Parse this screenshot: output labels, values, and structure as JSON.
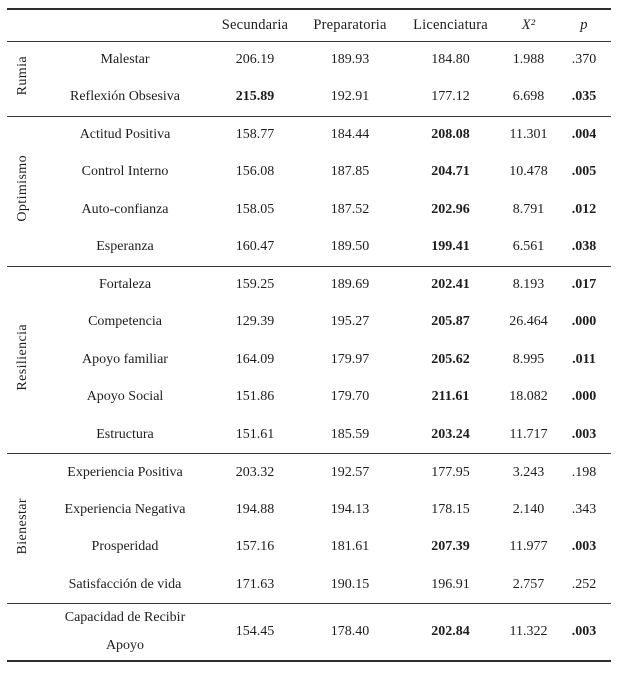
{
  "table": {
    "columns": [
      "",
      "Secundaria",
      "Preparatoria",
      "Licenciatura",
      "X²",
      "p"
    ],
    "value_column_names": [
      "mean-secundaria",
      "mean-preparatoria",
      "mean-licenciatura",
      "chi-square",
      "p-value"
    ],
    "groups": [
      {
        "label": "Rumia",
        "rows": [
          {
            "name": "Malestar",
            "values": [
              "206.19",
              "189.93",
              "184.80",
              "1.988",
              ".370"
            ],
            "bold": []
          },
          {
            "name": "Reflexión Obsesiva",
            "values": [
              "215.89",
              "192.91",
              "177.12",
              "6.698",
              ".035"
            ],
            "bold": [
              0,
              4
            ]
          }
        ]
      },
      {
        "label": "Optimismo",
        "rows": [
          {
            "name": "Actitud Positiva",
            "values": [
              "158.77",
              "184.44",
              "208.08",
              "11.301",
              ".004"
            ],
            "bold": [
              2,
              4
            ]
          },
          {
            "name": "Control Interno",
            "values": [
              "156.08",
              "187.85",
              "204.71",
              "10.478",
              ".005"
            ],
            "bold": [
              2,
              4
            ]
          },
          {
            "name": "Auto-confianza",
            "values": [
              "158.05",
              "187.52",
              "202.96",
              "8.791",
              ".012"
            ],
            "bold": [
              2,
              4
            ]
          },
          {
            "name": "Esperanza",
            "values": [
              "160.47",
              "189.50",
              "199.41",
              "6.561",
              ".038"
            ],
            "bold": [
              2,
              4
            ]
          }
        ]
      },
      {
        "label": "Resiliencia",
        "rows": [
          {
            "name": "Fortaleza",
            "values": [
              "159.25",
              "189.69",
              "202.41",
              "8.193",
              ".017"
            ],
            "bold": [
              2,
              4
            ]
          },
          {
            "name": "Competencia",
            "values": [
              "129.39",
              "195.27",
              "205.87",
              "26.464",
              ".000"
            ],
            "bold": [
              2,
              4
            ]
          },
          {
            "name": "Apoyo familiar",
            "values": [
              "164.09",
              "179.97",
              "205.62",
              "8.995",
              ".011"
            ],
            "bold": [
              2,
              4
            ]
          },
          {
            "name": "Apoyo Social",
            "values": [
              "151.86",
              "179.70",
              "211.61",
              "18.082",
              ".000"
            ],
            "bold": [
              2,
              4
            ]
          },
          {
            "name": "Estructura",
            "values": [
              "151.61",
              "185.59",
              "203.24",
              "11.717",
              ".003"
            ],
            "bold": [
              2,
              4
            ]
          }
        ]
      },
      {
        "label": "Bienestar",
        "rows": [
          {
            "name": "Experiencia Positiva",
            "values": [
              "203.32",
              "192.57",
              "177.95",
              "3.243",
              ".198"
            ],
            "bold": []
          },
          {
            "name": "Experiencia Negativa",
            "values": [
              "194.88",
              "194.13",
              "178.15",
              "2.140",
              ".343"
            ],
            "bold": []
          },
          {
            "name": "Prosperidad",
            "values": [
              "157.16",
              "181.61",
              "207.39",
              "11.977",
              ".003"
            ],
            "bold": [
              2,
              4
            ]
          },
          {
            "name": "Satisfacción de vida",
            "values": [
              "171.63",
              "190.15",
              "196.91",
              "2.757",
              ".252"
            ],
            "bold": []
          }
        ]
      },
      {
        "label": "",
        "rows": [
          {
            "name": "Capacidad de Recibir\nApoyo",
            "values": [
              "154.45",
              "178.40",
              "202.84",
              "11.322",
              ".003"
            ],
            "bold": [
              2,
              4
            ]
          }
        ]
      }
    ]
  }
}
